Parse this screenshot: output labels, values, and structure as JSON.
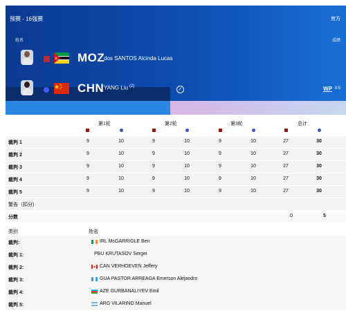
{
  "header": {
    "stage": "预赛 - 16强赛",
    "official_label": "官方",
    "name_label": "姓名",
    "result_label": "成绩"
  },
  "athletes": [
    {
      "noc": "MOZ",
      "name": "dos SANTOS Alcinda Lucas",
      "seed": "",
      "corner": "red",
      "flag": "mozambique-flag"
    },
    {
      "noc": "CHN",
      "name": "YANG Liu",
      "seed": "(2)",
      "corner": "blue",
      "flag": "china-flag",
      "result": "WP",
      "result_score": "0:5",
      "winner": true
    }
  ],
  "rounds": [
    "第1轮",
    "第2轮",
    "第3轮",
    "总计"
  ],
  "judges": [
    {
      "label": "裁判 1",
      "values": [
        "9",
        "10",
        "9",
        "10",
        "9",
        "10",
        "27",
        "30"
      ]
    },
    {
      "label": "裁判 2",
      "values": [
        "9",
        "10",
        "9",
        "10",
        "9",
        "10",
        "27",
        "30"
      ]
    },
    {
      "label": "裁判 3",
      "values": [
        "9",
        "10",
        "9",
        "10",
        "9",
        "10",
        "27",
        "30"
      ]
    },
    {
      "label": "裁判 4",
      "values": [
        "9",
        "10",
        "9",
        "10",
        "9",
        "10",
        "27",
        "30"
      ]
    },
    {
      "label": "裁判 5",
      "values": [
        "9",
        "10",
        "9",
        "10",
        "9",
        "10",
        "27",
        "30"
      ]
    }
  ],
  "warnings": {
    "label": "警告（扣分)"
  },
  "score": {
    "label": "分数",
    "red": "0",
    "blue": "5"
  },
  "officials_header": {
    "category": "类别",
    "name": "姓名"
  },
  "officials": [
    {
      "role": "裁判:",
      "noc": "IRL",
      "name": "McGARRIGLE Ben",
      "flag": "ireland-flag"
    },
    {
      "role": "裁判 1:",
      "noc": "PBU",
      "name": "KRUTASOV Sergei",
      "flag": "none"
    },
    {
      "role": "裁判 2:",
      "noc": "CAN",
      "name": "VERHOEVEN Jeffery",
      "flag": "canada-flag"
    },
    {
      "role": "裁判 3:",
      "noc": "GUA",
      "name": "PASTOR ARREAGA Emerson Alejandro",
      "flag": "guatemala-flag"
    },
    {
      "role": "裁判 4:",
      "noc": "AZE",
      "name": "GURBANALIYEV Emil",
      "flag": "azerbaijan-flag"
    },
    {
      "role": "裁判 5:",
      "noc": "ARG",
      "name": "VILARINO Manuel",
      "flag": "argentina-flag"
    }
  ],
  "colors": {
    "banner": "#0d4fb3",
    "red_corner": "#8b1a1a",
    "blue_corner": "#3f51b5"
  }
}
